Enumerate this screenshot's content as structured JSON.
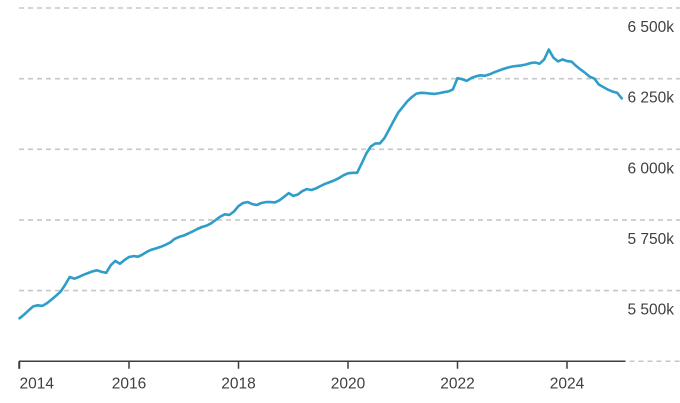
{
  "chart_data": {
    "type": "line",
    "title": "",
    "xlabel": "",
    "ylabel": "",
    "unit": "k",
    "legend": "none",
    "grid": "dashed-horizontal",
    "y_axis": {
      "side": "right",
      "top_value": 6500,
      "step": 250,
      "baseline_value": 5250,
      "ticks": [
        {
          "value": 6500,
          "label": "6 500k"
        },
        {
          "value": 6250,
          "label": "6 250k"
        },
        {
          "value": 6000,
          "label": "6 000k"
        },
        {
          "value": 5750,
          "label": "5 750k"
        },
        {
          "value": 5500,
          "label": "5 500k"
        }
      ]
    },
    "x_axis": {
      "ticks": [
        {
          "year": 2014,
          "label": "2014"
        },
        {
          "year": 2016,
          "label": "2016"
        },
        {
          "year": 2018,
          "label": "2018"
        },
        {
          "year": 2020,
          "label": "2020"
        },
        {
          "year": 2022,
          "label": "2022"
        },
        {
          "year": 2024,
          "label": "2024"
        }
      ]
    },
    "series": [
      {
        "name": "monthly-values",
        "start": "2014-01",
        "frequency": "monthly",
        "values": [
          5402,
          5415,
          5430,
          5444,
          5448,
          5446,
          5455,
          5468,
          5482,
          5496,
          5520,
          5548,
          5542,
          5548,
          5556,
          5562,
          5568,
          5572,
          5566,
          5563,
          5590,
          5605,
          5595,
          5608,
          5619,
          5622,
          5620,
          5628,
          5638,
          5645,
          5650,
          5655,
          5662,
          5670,
          5683,
          5690,
          5695,
          5702,
          5710,
          5718,
          5725,
          5730,
          5738,
          5750,
          5762,
          5770,
          5768,
          5780,
          5799,
          5810,
          5813,
          5806,
          5803,
          5810,
          5813,
          5813,
          5812,
          5820,
          5832,
          5845,
          5835,
          5840,
          5852,
          5859,
          5856,
          5862,
          5870,
          5878,
          5884,
          5890,
          5898,
          5908,
          5915,
          5917,
          5917,
          5950,
          5985,
          6010,
          6021,
          6021,
          6040,
          6070,
          6100,
          6130,
          6150,
          6170,
          6185,
          6197,
          6200,
          6199,
          6197,
          6196,
          6199,
          6202,
          6205,
          6212,
          6252,
          6248,
          6242,
          6252,
          6258,
          6262,
          6260,
          6265,
          6272,
          6278,
          6284,
          6289,
          6293,
          6295,
          6297,
          6300,
          6305,
          6307,
          6303,
          6318,
          6353,
          6325,
          6311,
          6318,
          6312,
          6310,
          6295,
          6282,
          6270,
          6257,
          6250,
          6229,
          6220,
          6211,
          6204,
          6200,
          6180
        ]
      }
    ],
    "colors": {
      "line": "#2e9ec9",
      "grid": "#c7c7c7",
      "axis": "#3d3d3d",
      "text": "#404040"
    }
  }
}
